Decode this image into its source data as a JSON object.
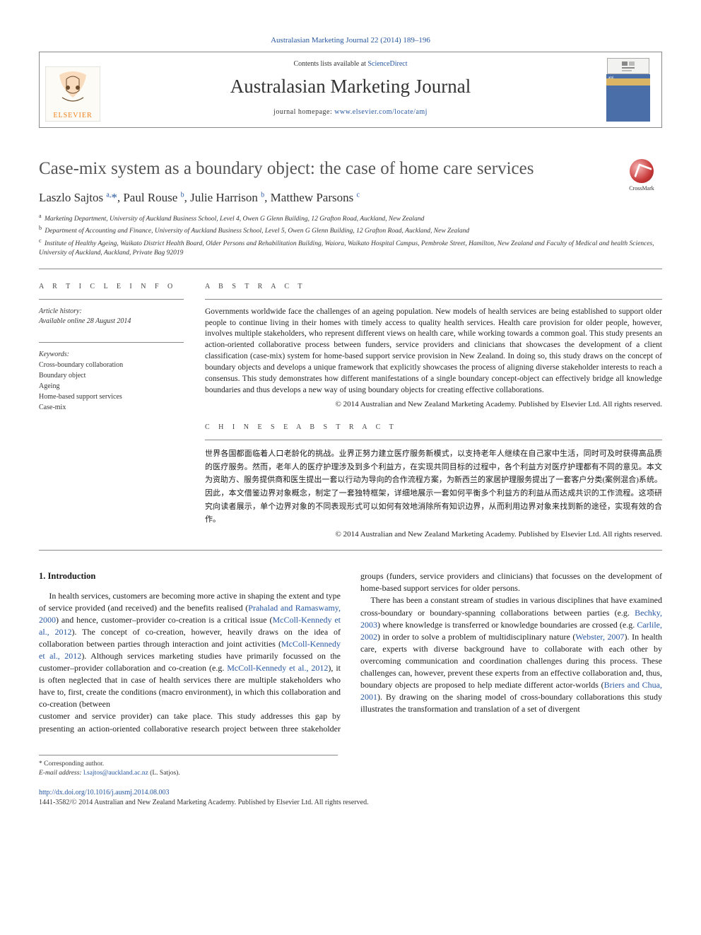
{
  "journal": {
    "header_link": "Australasian Marketing Journal 22 (2014) 189–196",
    "contents_prefix": "Contents lists available at ",
    "contents_link": "ScienceDirect",
    "name": "Australasian Marketing Journal",
    "homepage_prefix": "journal homepage: ",
    "homepage_url": "www.elsevier.com/locate/amj",
    "publisher_logo_alt": "ELSEVIER",
    "cover_label": "amj"
  },
  "crossmark": {
    "label": "CrossMark"
  },
  "article": {
    "title": "Case-mix system as a boundary object: the case of home care services",
    "authors_html": "Laszlo Sajtos <sup>a,</sup><span class='corr'>*</span>, Paul Rouse <sup>b</sup>, Julie Harrison <sup>b</sup>, Matthew Parsons <sup>c</sup>",
    "affiliations": [
      "Marketing Department, University of Auckland Business School, Level 4, Owen G Glenn Building, 12 Grafton Road, Auckland, New Zealand",
      "Department of Accounting and Finance, University of Auckland Business School, Level 5, Owen G Glenn Building, 12 Grafton Road, Auckland, New Zealand",
      "Institute of Healthy Ageing, Waikato District Health Board, Older Persons and Rehabilitation Building, Waiora, Waikato Hospital Campus, Pembroke Street, Hamilton, New Zealand and Faculty of Medical and health Sciences, University of Auckland, Auckland, Private Bag 92019"
    ],
    "aff_markers": [
      "a",
      "b",
      "c"
    ]
  },
  "labels": {
    "article_info": "A R T I C L E   I N F O",
    "abstract": "A B S T R A C T",
    "chinese_abstract": "C H I N E S E   A B S T R A C T",
    "history": "Article history:",
    "available": "Available online 28 August 2014",
    "keywords": "Keywords:"
  },
  "keywords": [
    "Cross-boundary collaboration",
    "Boundary object",
    "Ageing",
    "Home-based support services",
    "Case-mix"
  ],
  "abstract": "Governments worldwide face the challenges of an ageing population. New models of health services are being established to support older people to continue living in their homes with timely access to quality health services. Health care provision for older people, however, involves multiple stakeholders, who represent different views on health care, while working towards a common goal. This study presents an action-oriented collaborative process between funders, service providers and clinicians that showcases the development of a client classification (case-mix) system for home-based support service provision in New Zealand. In doing so, this study draws on the concept of boundary objects and develops a unique framework that explicitly showcases the process of aligning diverse stakeholder interests to reach a consensus. This study demonstrates how different manifestations of a single boundary concept-object can effectively bridge all knowledge boundaries and thus develops a new way of using boundary objects for creating effective collaborations.",
  "copyright": "© 2014 Australian and New Zealand Marketing Academy. Published by Elsevier Ltd. All rights reserved.",
  "chinese_abstract": "世界各国都面临着人口老龄化的挑战。业界正努力建立医疗服务新模式，以支持老年人继续在自己家中生活，同时可及时获得高品质的医疗服务。然而，老年人的医疗护理涉及到多个利益方，在实现共同目标的过程中，各个利益方对医疗护理都有不同的意见。本文为资助方、服务提供商和医生提出一套以行动为导向的合作流程方案，为新西兰的家居护理服务提出了一套客户分类(案例混合)系统。因此，本文借鉴边界对象概念，制定了一套独特框架，详细地展示一套如何平衡多个利益方的利益从而达成共识的工作流程。这项研究向读者展示，单个边界对象的不同表现形式可以如何有效地消除所有知识边界，从而利用边界对象来找到新的途径，实现有效的合作。",
  "body": {
    "section1_title": "1. Introduction",
    "p1_pre": "In health services, customers are becoming more active in shaping the extent and type of service provided (and received) and the benefits realised (",
    "p1_l1": "Prahalad and Ramaswamy, 2000",
    "p1_m1": ") and hence, customer–provider co-creation is a critical issue (",
    "p1_l2": "McColl-Kennedy et al., 2012",
    "p1_m2": "). The concept of co-creation, however, heavily draws on the idea of collaboration between parties through interaction and joint activities (",
    "p1_l3": "McColl-Kennedy et al., 2012",
    "p1_m3": "). Although services marketing studies have primarily focussed on the customer–provider collaboration and co-creation (e.g. ",
    "p1_l4": "McColl-Kennedy et al., 2012",
    "p1_m4": "), it is often neglected that in case of health services there are multiple stakeholders who have to, first, create the conditions (macro environment), in which this collaboration and co-creation (between",
    "p2": "customer and service provider) can take place. This study addresses this gap by presenting an action-oriented collaborative research project between three stakeholder groups (funders, service providers and clinicians) that focusses on the development of home-based support services for older persons.",
    "p3_pre": "There has been a constant stream of studies in various disciplines that have examined cross-boundary or boundary-spanning collaborations between parties (e.g. ",
    "p3_l1": "Bechky, 2003",
    "p3_m1": ") where knowledge is transferred or knowledge boundaries are crossed (e.g. ",
    "p3_l2": "Carlile, 2002",
    "p3_m2": ") in order to solve a problem of multidisciplinary nature (",
    "p3_l3": "Webster, 2007",
    "p3_m3": "). In health care, experts with diverse background have to collaborate with each other by overcoming communication and coordination challenges during this process. These challenges can, however, prevent these experts from an effective collaboration and, thus, boundary objects are proposed to help mediate different actor-worlds (",
    "p3_l4": "Briers and Chua, 2001",
    "p3_m4": "). By drawing on the sharing model of cross-boundary collaborations this study illustrates the transformation and translation of a set of divergent"
  },
  "footnote": {
    "corr": "* Corresponding author.",
    "email_label": "E-mail address:",
    "email": "l.sajtos@auckland.ac.nz",
    "email_suffix": "(L. Satjos)."
  },
  "doi": "http://dx.doi.org/10.1016/j.ausmj.2014.08.003",
  "issn_line": "1441-3582/© 2014 Australian and New Zealand Marketing Academy. Published by Elsevier Ltd. All rights reserved.",
  "colors": {
    "link": "#2757a0",
    "title": "#555555",
    "rule": "#888888",
    "cover_bg": "#4a6fa8",
    "cover_stripe": "#d9b565",
    "elsevier_orange": "#ef7f1a"
  }
}
